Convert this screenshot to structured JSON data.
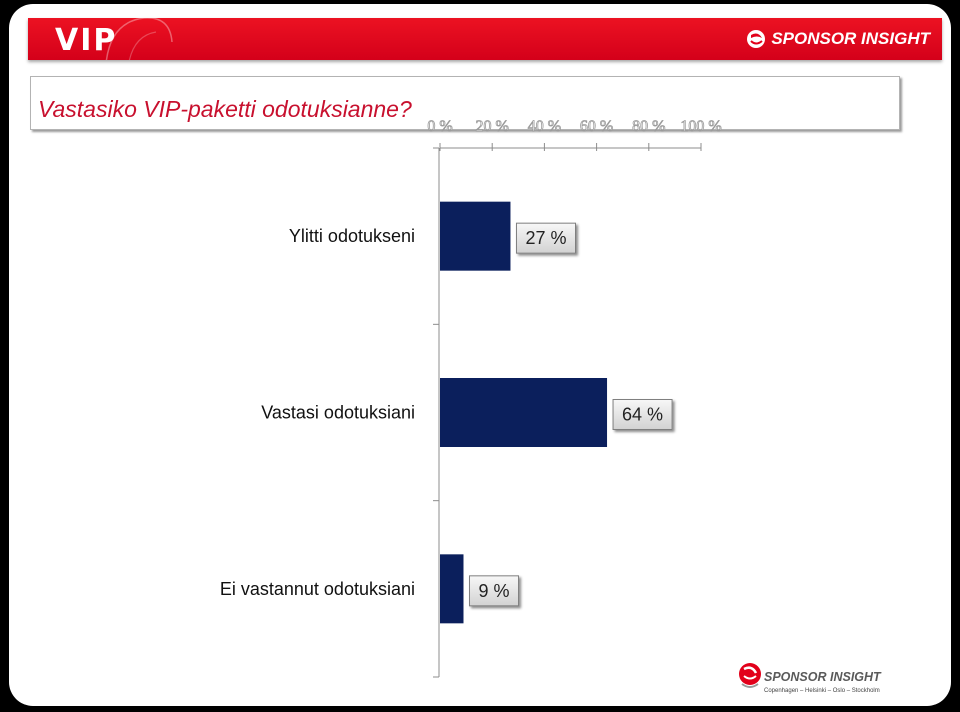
{
  "header": {
    "title": "VIP",
    "logo_text": "SPONSOR INSIGHT",
    "logo_icon": "sponsor-insight-logo-icon",
    "brand_color": "#e2001a"
  },
  "question": {
    "text": "Vastasiko VIP-paketti odotuksianne?",
    "color": "#c8102e"
  },
  "footer_logo": {
    "text": "SPONSOR INSIGHT",
    "cities": "Copenhagen – Helsinki – Oslo – Stockholm",
    "icon": "sponsor-insight-logo-icon"
  },
  "chart_data": {
    "type": "bar",
    "orientation": "horizontal",
    "categories": [
      "Ylitti odotukseni",
      "Vastasi odotuksiani",
      "Ei vastannut odotuksiani"
    ],
    "values": [
      27,
      64,
      9
    ],
    "data_labels": [
      "27 %",
      "64 %",
      "9 %"
    ],
    "value_axis": {
      "ticks": [
        "0 %",
        "20 %",
        "40 %",
        "60 %",
        "80 %",
        "100 %"
      ],
      "tick_values": [
        0,
        20,
        40,
        60,
        80,
        100
      ],
      "range": [
        0,
        100
      ],
      "position": "top"
    },
    "bar_color": "#0b1f5c",
    "grid": false
  }
}
